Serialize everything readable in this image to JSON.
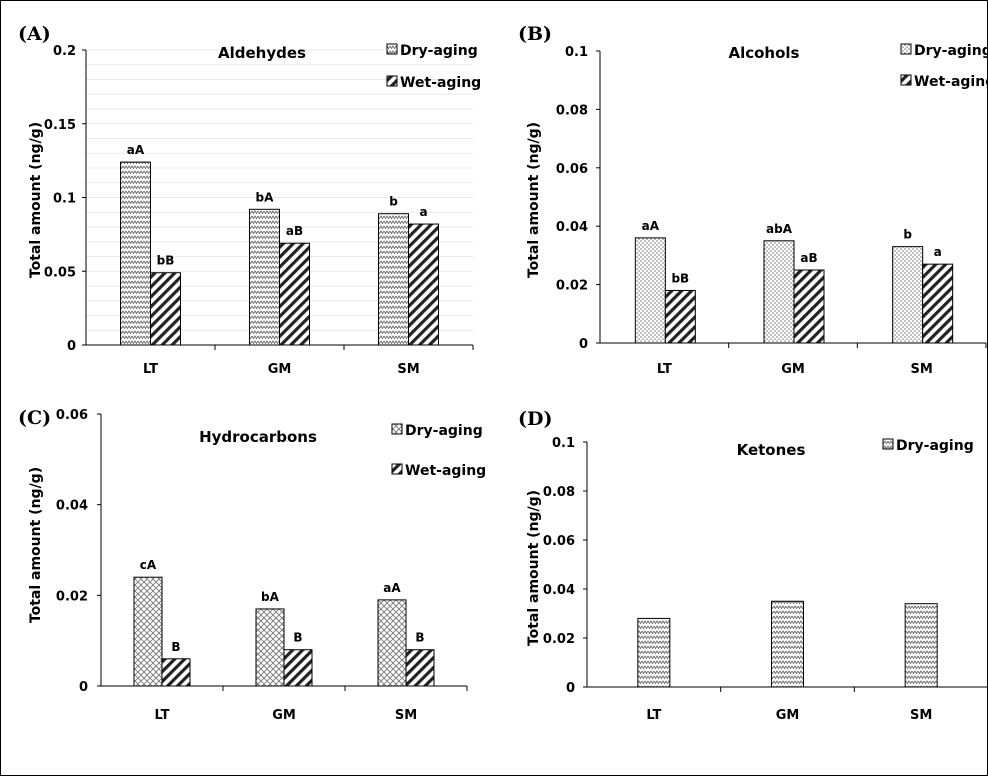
{
  "chart_data": [
    {
      "panel": "(A)",
      "type": "bar",
      "title": "Aldehydes",
      "ylabel": "Total amount (ng/g)",
      "ylim": [
        0,
        0.2
      ],
      "yticks": [
        0,
        0.05,
        0.1,
        0.15,
        0.2
      ],
      "ytick_labels": [
        "0",
        "0.05",
        "0.1",
        "0.15",
        "0.2"
      ],
      "grid": true,
      "legend": "top-right",
      "categories": [
        "LT",
        "GM",
        "SM"
      ],
      "series": [
        {
          "name": "Dry-aging",
          "pattern": "zigzag",
          "values": [
            0.124,
            0.092,
            0.089
          ],
          "labels": [
            "aA",
            "bA",
            "b"
          ]
        },
        {
          "name": "Wet-aging",
          "pattern": "diagonal",
          "values": [
            0.049,
            0.069,
            0.082
          ],
          "labels": [
            "bB",
            "aB",
            "a"
          ]
        }
      ]
    },
    {
      "panel": "(B)",
      "type": "bar",
      "title": "Alcohols",
      "ylabel": "Total amount (ng/g)",
      "ylim": [
        0,
        0.1
      ],
      "yticks": [
        0,
        0.02,
        0.04,
        0.06,
        0.08,
        0.1
      ],
      "ytick_labels": [
        "0",
        "0.02",
        "0.04",
        "0.06",
        "0.08",
        "0.1"
      ],
      "grid": false,
      "legend": "top-right",
      "categories": [
        "LT",
        "GM",
        "SM"
      ],
      "series": [
        {
          "name": "Dry-aging",
          "pattern": "dots",
          "values": [
            0.036,
            0.035,
            0.033
          ],
          "labels": [
            "aA",
            "abA",
            "b"
          ]
        },
        {
          "name": "Wet-aging",
          "pattern": "diagonal",
          "values": [
            0.018,
            0.025,
            0.027
          ],
          "labels": [
            "bB",
            "aB",
            "a"
          ]
        }
      ]
    },
    {
      "panel": "(C)",
      "type": "bar",
      "title": "Hydrocarbons",
      "ylabel": "Total amount (ng/g)",
      "ylim": [
        0,
        0.06
      ],
      "yticks": [
        0,
        0.02,
        0.04,
        0.06
      ],
      "ytick_labels": [
        "0",
        "0.02",
        "0.04",
        "0.06"
      ],
      "grid": false,
      "legend": "top-right",
      "categories": [
        "LT",
        "GM",
        "SM"
      ],
      "series": [
        {
          "name": "Dry-aging",
          "pattern": "check",
          "values": [
            0.024,
            0.017,
            0.019
          ],
          "labels": [
            "cA",
            "bA",
            "aA"
          ]
        },
        {
          "name": "Wet-aging",
          "pattern": "diagonal",
          "values": [
            0.006,
            0.008,
            0.008
          ],
          "labels": [
            "B",
            "B",
            "B"
          ]
        }
      ]
    },
    {
      "panel": "(D)",
      "type": "bar",
      "title": "Ketones",
      "ylabel": "Total amount (ng/g)",
      "ylim": [
        0,
        0.1
      ],
      "yticks": [
        0,
        0.02,
        0.04,
        0.06,
        0.08,
        0.1
      ],
      "ytick_labels": [
        "0",
        "0.02",
        "0.04",
        "0.06",
        "0.08",
        "0.1"
      ],
      "grid": false,
      "legend": "top-right",
      "categories": [
        "LT",
        "GM",
        "SM"
      ],
      "series": [
        {
          "name": "Dry-aging",
          "pattern": "zigzag",
          "values": [
            0.028,
            0.035,
            0.034
          ],
          "labels": [
            "",
            "",
            ""
          ]
        }
      ]
    }
  ]
}
